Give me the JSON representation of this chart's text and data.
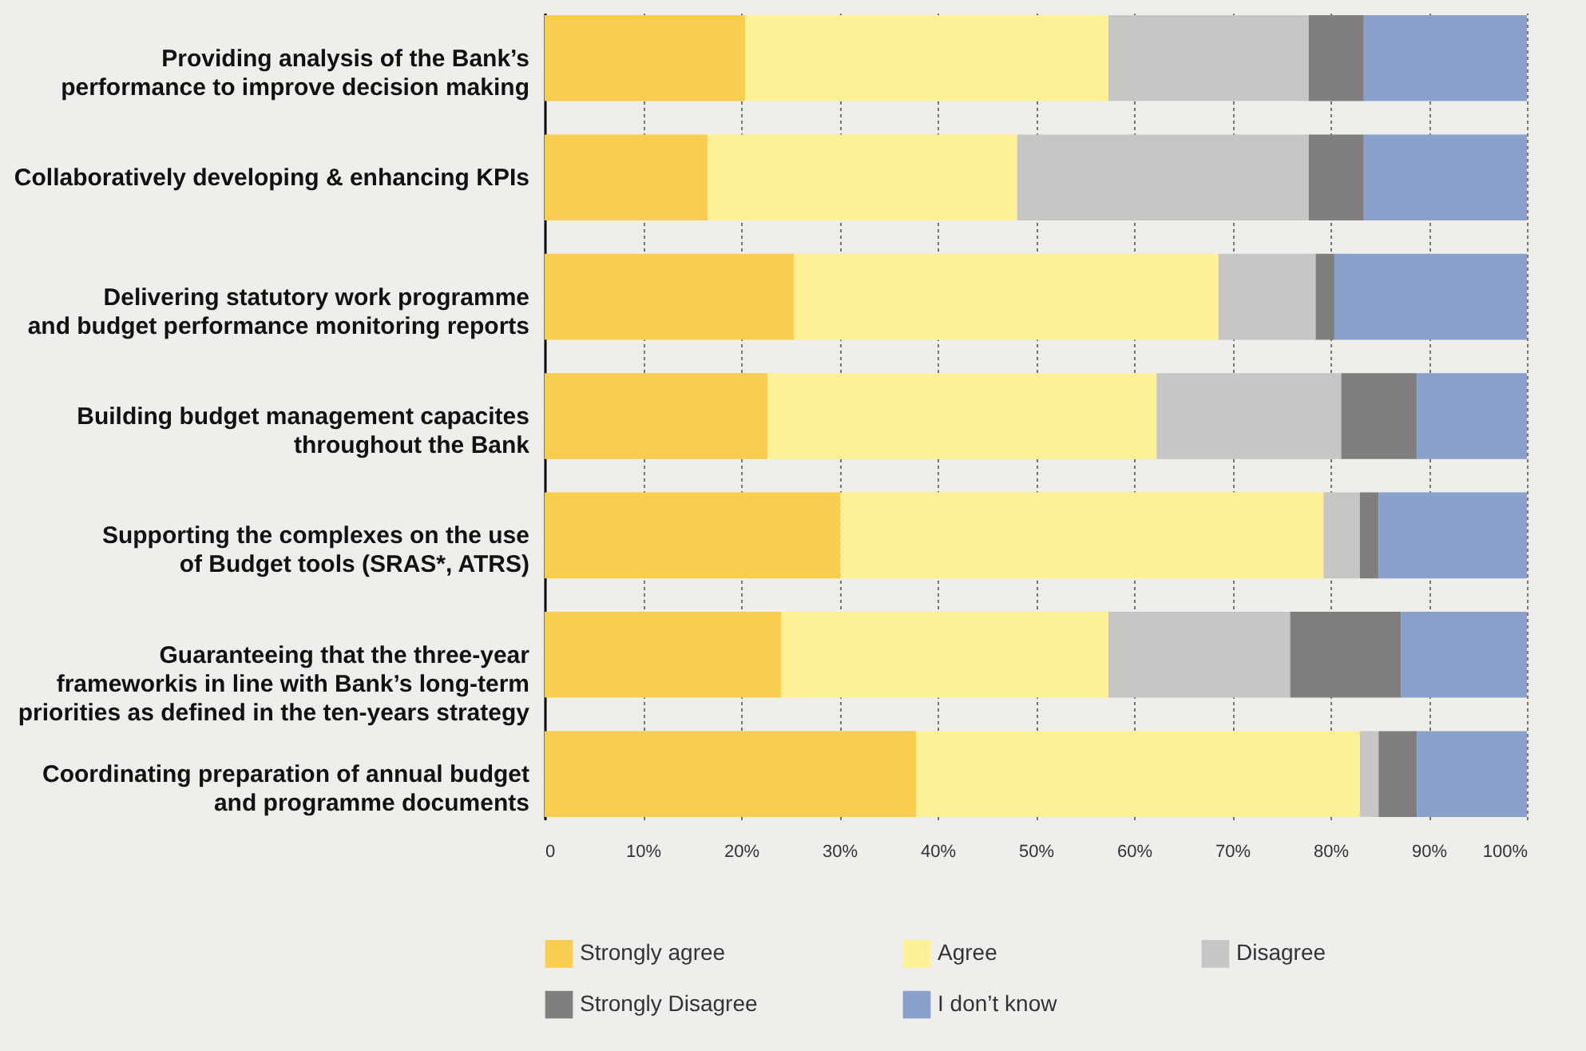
{
  "chart_data": {
    "type": "bar",
    "orientation": "horizontal",
    "stacked": true,
    "categories": [
      "Providing analysis of the Bank’s\nperformance to improve decision making",
      "Collaboratively developing & enhancing KPIs",
      "Delivering statutory work programme\nand budget performance monitoring reports",
      "Building budget management capacites\nthroughout the Bank",
      "Supporting the complexes on the use\nof Budget tools (SRAS*, ATRS)",
      "Guaranteeing that the three-year\nframeworkis in line with Bank’s long-term\npriorities as defined in the ten-years strategy",
      "Coordinating preparation of annual budget\nand programme documents"
    ],
    "series": [
      {
        "name": "Strongly agree",
        "color": "#f8cd50",
        "values": [
          20.4,
          16.6,
          25.4,
          22.7,
          30.1,
          24.1,
          37.8
        ]
      },
      {
        "name": "Agree",
        "color": "#fdf197",
        "values": [
          37.0,
          31.5,
          43.2,
          39.6,
          49.2,
          33.3,
          45.2
        ]
      },
      {
        "name": "Disagree",
        "color": "#c7c6c4",
        "values": [
          20.4,
          29.7,
          9.9,
          18.8,
          3.7,
          18.5,
          1.9
        ]
      },
      {
        "name": "Strongly Disagree",
        "color": "#7f7f7f",
        "values": [
          5.6,
          5.6,
          1.9,
          7.7,
          1.9,
          11.3,
          3.9
        ]
      },
      {
        "name": "I don’t know",
        "color": "#89a0cb",
        "values": [
          16.6,
          16.6,
          19.6,
          11.2,
          15.1,
          12.8,
          11.2
        ]
      }
    ],
    "xlim": [
      0,
      100
    ],
    "xticks": [
      {
        "value": 0,
        "label": "0"
      },
      {
        "value": 10,
        "label": "10%"
      },
      {
        "value": 20,
        "label": "20%"
      },
      {
        "value": 30,
        "label": "30%"
      },
      {
        "value": 40,
        "label": "40%"
      },
      {
        "value": 50,
        "label": "50%"
      },
      {
        "value": 60,
        "label": "60%"
      },
      {
        "value": 70,
        "label": "70%"
      },
      {
        "value": 80,
        "label": "80%"
      },
      {
        "value": 90,
        "label": "90%"
      },
      {
        "value": 100,
        "label": "100%"
      }
    ],
    "grid": "x",
    "legend": "bottom"
  }
}
